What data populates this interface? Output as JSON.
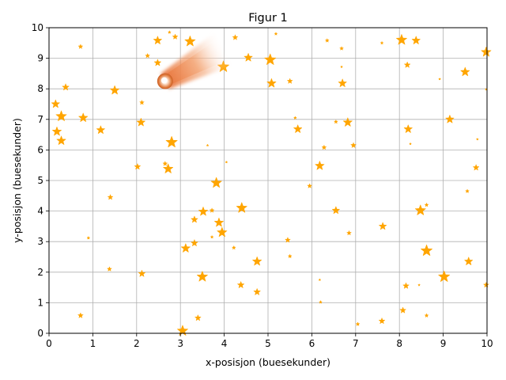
{
  "chart_data": {
    "type": "scatter",
    "title": "Figur 1",
    "xlabel": "x-posisjon (buesekunder)",
    "ylabel": "y-posisjon (buesekunder)",
    "xlim": [
      0,
      10
    ],
    "ylim": [
      0,
      10
    ],
    "grid": true,
    "xticks": [
      "0",
      "1",
      "2",
      "3",
      "4",
      "5",
      "6",
      "7",
      "8",
      "9",
      "10"
    ],
    "yticks": [
      "0",
      "1",
      "2",
      "3",
      "4",
      "5",
      "6",
      "7",
      "8",
      "9",
      "10"
    ],
    "marker": "star",
    "star_color": "#ffa500",
    "comet_color": "#e8743b",
    "grid_color": "#b0b0b0",
    "stars": [
      {
        "x": 3.22,
        "y": 9.55,
        "m": 12
      },
      {
        "x": 2.48,
        "y": 9.58,
        "m": 9
      },
      {
        "x": 2.88,
        "y": 9.7,
        "m": 5
      },
      {
        "x": 2.75,
        "y": 9.85,
        "m": 2
      },
      {
        "x": 4.25,
        "y": 9.68,
        "m": 5
      },
      {
        "x": 5.18,
        "y": 9.8,
        "m": 2
      },
      {
        "x": 6.35,
        "y": 9.58,
        "m": 3
      },
      {
        "x": 7.6,
        "y": 9.5,
        "m": 2
      },
      {
        "x": 8.05,
        "y": 9.6,
        "m": 12
      },
      {
        "x": 8.38,
        "y": 9.58,
        "m": 9
      },
      {
        "x": 9.98,
        "y": 9.2,
        "m": 11
      },
      {
        "x": 0.72,
        "y": 9.38,
        "m": 4
      },
      {
        "x": 2.25,
        "y": 9.08,
        "m": 4
      },
      {
        "x": 2.48,
        "y": 8.85,
        "m": 7
      },
      {
        "x": 4.55,
        "y": 9.02,
        "m": 9
      },
      {
        "x": 5.05,
        "y": 8.95,
        "m": 13
      },
      {
        "x": 6.68,
        "y": 9.32,
        "m": 3
      },
      {
        "x": 6.68,
        "y": 8.72,
        "m": 1
      },
      {
        "x": 3.98,
        "y": 8.72,
        "m": 13
      },
      {
        "x": 8.18,
        "y": 8.78,
        "m": 6
      },
      {
        "x": 9.5,
        "y": 8.55,
        "m": 10
      },
      {
        "x": 8.92,
        "y": 8.32,
        "m": 1
      },
      {
        "x": 5.08,
        "y": 8.18,
        "m": 10
      },
      {
        "x": 5.5,
        "y": 8.25,
        "m": 5
      },
      {
        "x": 6.7,
        "y": 8.18,
        "m": 9
      },
      {
        "x": 0.38,
        "y": 8.05,
        "m": 7
      },
      {
        "x": 1.5,
        "y": 7.95,
        "m": 10
      },
      {
        "x": 9.98,
        "y": 7.98,
        "m": 1
      },
      {
        "x": 0.15,
        "y": 7.5,
        "m": 9
      },
      {
        "x": 2.12,
        "y": 7.55,
        "m": 4
      },
      {
        "x": 0.28,
        "y": 7.1,
        "m": 12
      },
      {
        "x": 0.78,
        "y": 7.05,
        "m": 10
      },
      {
        "x": 2.1,
        "y": 6.9,
        "m": 9
      },
      {
        "x": 5.62,
        "y": 7.05,
        "m": 2
      },
      {
        "x": 6.55,
        "y": 6.92,
        "m": 3
      },
      {
        "x": 6.82,
        "y": 6.9,
        "m": 10
      },
      {
        "x": 9.15,
        "y": 7.0,
        "m": 9
      },
      {
        "x": 0.18,
        "y": 6.6,
        "m": 10
      },
      {
        "x": 1.18,
        "y": 6.65,
        "m": 9
      },
      {
        "x": 5.68,
        "y": 6.68,
        "m": 9
      },
      {
        "x": 8.2,
        "y": 6.68,
        "m": 9
      },
      {
        "x": 0.28,
        "y": 6.3,
        "m": 10
      },
      {
        "x": 2.8,
        "y": 6.25,
        "m": 13
      },
      {
        "x": 3.62,
        "y": 6.15,
        "m": 1
      },
      {
        "x": 6.28,
        "y": 6.08,
        "m": 4
      },
      {
        "x": 6.95,
        "y": 6.15,
        "m": 5
      },
      {
        "x": 8.25,
        "y": 6.2,
        "m": 1
      },
      {
        "x": 9.78,
        "y": 6.35,
        "m": 1
      },
      {
        "x": 4.05,
        "y": 5.6,
        "m": 1
      },
      {
        "x": 2.65,
        "y": 5.55,
        "m": 4
      },
      {
        "x": 2.02,
        "y": 5.45,
        "m": 6
      },
      {
        "x": 2.72,
        "y": 5.38,
        "m": 11
      },
      {
        "x": 6.18,
        "y": 5.48,
        "m": 10
      },
      {
        "x": 9.75,
        "y": 5.42,
        "m": 6
      },
      {
        "x": 3.82,
        "y": 4.92,
        "m": 12
      },
      {
        "x": 5.95,
        "y": 4.82,
        "m": 4
      },
      {
        "x": 9.55,
        "y": 4.65,
        "m": 3
      },
      {
        "x": 1.4,
        "y": 4.45,
        "m": 5
      },
      {
        "x": 8.62,
        "y": 4.2,
        "m": 3
      },
      {
        "x": 3.52,
        "y": 3.98,
        "m": 10
      },
      {
        "x": 3.72,
        "y": 4.02,
        "m": 4
      },
      {
        "x": 4.4,
        "y": 4.1,
        "m": 12
      },
      {
        "x": 6.55,
        "y": 4.02,
        "m": 8
      },
      {
        "x": 8.48,
        "y": 4.02,
        "m": 12
      },
      {
        "x": 3.32,
        "y": 3.72,
        "m": 7
      },
      {
        "x": 3.88,
        "y": 3.62,
        "m": 10
      },
      {
        "x": 7.62,
        "y": 3.5,
        "m": 8
      },
      {
        "x": 3.72,
        "y": 3.15,
        "m": 2
      },
      {
        "x": 3.95,
        "y": 3.3,
        "m": 11
      },
      {
        "x": 6.85,
        "y": 3.28,
        "m": 4
      },
      {
        "x": 0.9,
        "y": 3.12,
        "m": 2
      },
      {
        "x": 5.45,
        "y": 3.05,
        "m": 5
      },
      {
        "x": 3.32,
        "y": 2.95,
        "m": 7
      },
      {
        "x": 3.12,
        "y": 2.78,
        "m": 10
      },
      {
        "x": 4.22,
        "y": 2.8,
        "m": 3
      },
      {
        "x": 8.62,
        "y": 2.7,
        "m": 13
      },
      {
        "x": 5.5,
        "y": 2.52,
        "m": 3
      },
      {
        "x": 4.75,
        "y": 2.35,
        "m": 10
      },
      {
        "x": 9.58,
        "y": 2.35,
        "m": 9
      },
      {
        "x": 1.38,
        "y": 2.1,
        "m": 4
      },
      {
        "x": 2.12,
        "y": 1.95,
        "m": 7
      },
      {
        "x": 3.5,
        "y": 1.85,
        "m": 12
      },
      {
        "x": 9.02,
        "y": 1.85,
        "m": 13
      },
      {
        "x": 6.18,
        "y": 1.75,
        "m": 1
      },
      {
        "x": 4.38,
        "y": 1.58,
        "m": 7
      },
      {
        "x": 8.15,
        "y": 1.55,
        "m": 6
      },
      {
        "x": 8.45,
        "y": 1.58,
        "m": 1
      },
      {
        "x": 9.98,
        "y": 1.58,
        "m": 5
      },
      {
        "x": 4.75,
        "y": 1.35,
        "m": 7
      },
      {
        "x": 6.2,
        "y": 1.02,
        "m": 2
      },
      {
        "x": 8.08,
        "y": 0.75,
        "m": 6
      },
      {
        "x": 0.72,
        "y": 0.58,
        "m": 5
      },
      {
        "x": 8.62,
        "y": 0.58,
        "m": 3
      },
      {
        "x": 3.4,
        "y": 0.5,
        "m": 6
      },
      {
        "x": 7.05,
        "y": 0.3,
        "m": 3
      },
      {
        "x": 7.6,
        "y": 0.4,
        "m": 6
      },
      {
        "x": 3.05,
        "y": 0.08,
        "m": 12
      }
    ],
    "comet": {
      "head_x": 2.65,
      "head_y": 8.25,
      "tail_x": 4.05,
      "tail_y": 9.35
    }
  }
}
